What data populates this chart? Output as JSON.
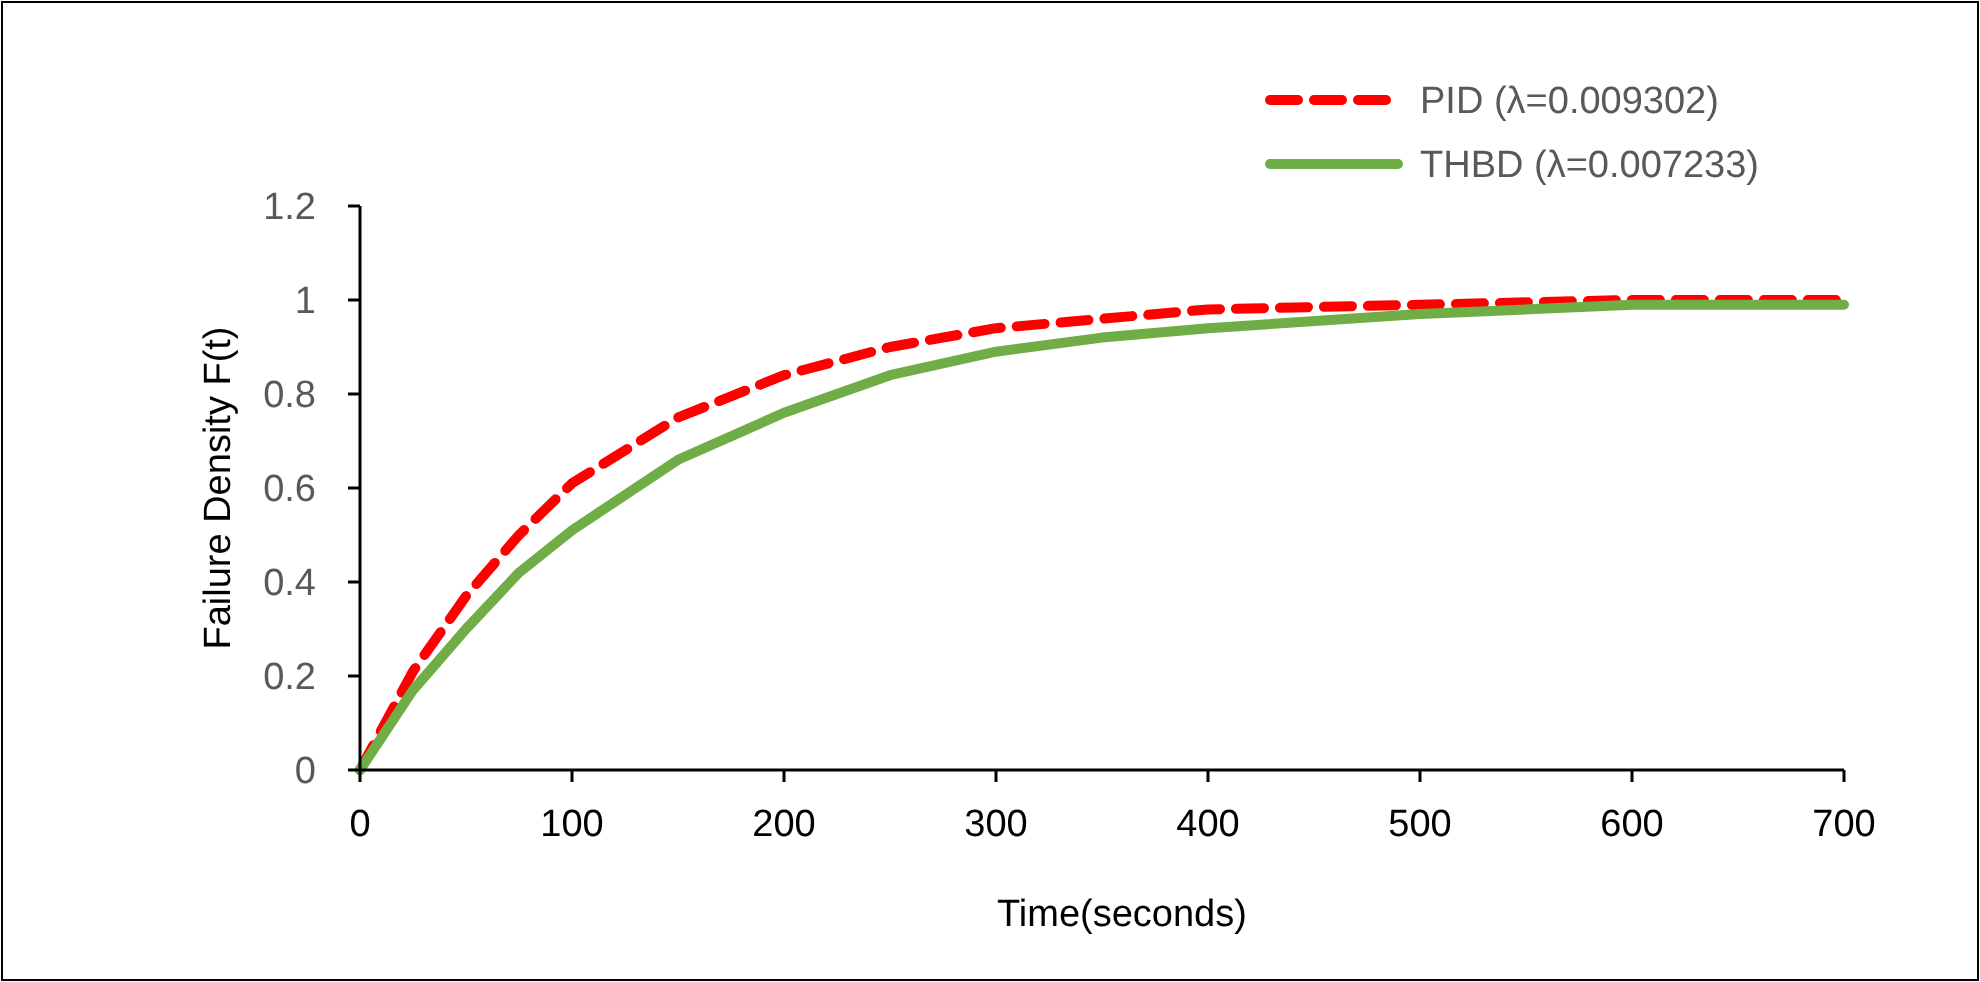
{
  "chart_data": {
    "type": "line",
    "xlabel": "Time(seconds)",
    "ylabel": "Failure Density F(t)",
    "x": [
      0,
      25,
      50,
      75,
      100,
      150,
      200,
      250,
      300,
      350,
      400,
      500,
      600,
      700
    ],
    "series": [
      {
        "name": "PID (λ=0.009302)",
        "color": "#ff0000",
        "line_style": "dashed",
        "values": [
          0,
          0.21,
          0.37,
          0.5,
          0.61,
          0.75,
          0.84,
          0.9,
          0.94,
          0.96,
          0.98,
          0.99,
          1,
          1
        ]
      },
      {
        "name": "THBD (λ=0.007233)",
        "color": "#70ad47",
        "line_style": "solid",
        "values": [
          0,
          0.17,
          0.3,
          0.42,
          0.51,
          0.66,
          0.76,
          0.84,
          0.89,
          0.92,
          0.94,
          0.97,
          0.99,
          0.99
        ]
      }
    ],
    "xlim": [
      0,
      700
    ],
    "xticks": [
      0,
      100,
      200,
      300,
      400,
      500,
      600,
      700
    ],
    "ylim": [
      0,
      1.2
    ],
    "yticks": [
      0,
      0.2,
      0.4,
      0.6,
      0.8,
      1,
      1.2
    ],
    "grid": false,
    "legend": "top right",
    "marker": "none"
  }
}
